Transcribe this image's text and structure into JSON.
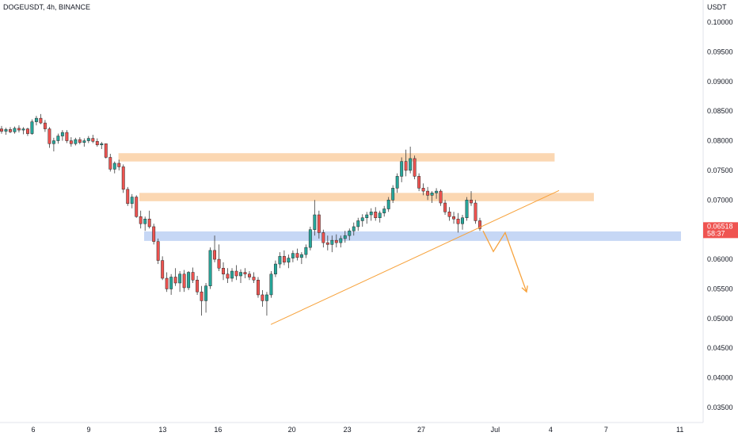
{
  "header": {
    "title": "DOGEUSDT, 4h, BINANCE"
  },
  "currency": "USDT",
  "price_tag": {
    "price": "0.06518",
    "countdown": "58:37",
    "color": "#ef5350"
  },
  "colors": {
    "up": "#26a69a",
    "down": "#ef5350",
    "zone_orange": "#fbd7b2",
    "zone_blue": "#c6d7f5",
    "trendline": "#f7a23b"
  },
  "chart_data": {
    "type": "candlestick",
    "y_axis": {
      "min": 0.032,
      "max": 0.1035,
      "ticks": [
        "0.10000",
        "0.09500",
        "0.09000",
        "0.08500",
        "0.08000",
        "0.07500",
        "0.07000",
        "0.06500",
        "0.06000",
        "0.05500",
        "0.05000",
        "0.04500",
        "0.04000",
        "0.03500"
      ]
    },
    "x_axis": {
      "ticks": [
        {
          "label": "6",
          "day": 6
        },
        {
          "label": "9",
          "day": 9
        },
        {
          "label": "13",
          "day": 13
        },
        {
          "label": "16",
          "day": 16
        },
        {
          "label": "20",
          "day": 20
        },
        {
          "label": "23",
          "day": 23
        },
        {
          "label": "27",
          "day": 27
        },
        {
          "label": "Jul",
          "day": 31
        },
        {
          "label": "4",
          "day": 34
        },
        {
          "label": "7",
          "day": 37
        },
        {
          "label": "11",
          "day": 41
        }
      ]
    },
    "candles_ohlc": [
      [
        0.082,
        0.0825,
        0.0812,
        0.0816
      ],
      [
        0.0816,
        0.0822,
        0.081,
        0.0819
      ],
      [
        0.0819,
        0.0823,
        0.0813,
        0.0815
      ],
      [
        0.0815,
        0.0824,
        0.0812,
        0.0821
      ],
      [
        0.0821,
        0.0826,
        0.0814,
        0.0818
      ],
      [
        0.0818,
        0.0823,
        0.0811,
        0.082
      ],
      [
        0.082,
        0.0822,
        0.0808,
        0.0812
      ],
      [
        0.0812,
        0.0836,
        0.081,
        0.0832
      ],
      [
        0.0832,
        0.0842,
        0.0826,
        0.0838
      ],
      [
        0.0838,
        0.0845,
        0.0828,
        0.083
      ],
      [
        0.083,
        0.0835,
        0.0815,
        0.082
      ],
      [
        0.082,
        0.0823,
        0.0788,
        0.0795
      ],
      [
        0.0795,
        0.0805,
        0.0782,
        0.08
      ],
      [
        0.08,
        0.0812,
        0.0795,
        0.0808
      ],
      [
        0.0808,
        0.0818,
        0.08,
        0.0814
      ],
      [
        0.0814,
        0.0818,
        0.0796,
        0.08
      ],
      [
        0.08,
        0.0806,
        0.079,
        0.0795
      ],
      [
        0.0795,
        0.0805,
        0.0792,
        0.0802
      ],
      [
        0.0802,
        0.0806,
        0.0794,
        0.0797
      ],
      [
        0.0797,
        0.0804,
        0.079,
        0.08
      ],
      [
        0.08,
        0.0808,
        0.0796,
        0.0804
      ],
      [
        0.0804,
        0.081,
        0.0796,
        0.0799
      ],
      [
        0.0799,
        0.0804,
        0.079,
        0.0793
      ],
      [
        0.0793,
        0.0798,
        0.0786,
        0.0795
      ],
      [
        0.0795,
        0.079,
        0.077,
        0.0772
      ],
      [
        0.0772,
        0.0778,
        0.0748,
        0.0752
      ],
      [
        0.0752,
        0.0765,
        0.0745,
        0.0762
      ],
      [
        0.0762,
        0.0768,
        0.075,
        0.0756
      ],
      [
        0.0756,
        0.076,
        0.0712,
        0.0718
      ],
      [
        0.0718,
        0.0722,
        0.069,
        0.0694
      ],
      [
        0.0694,
        0.071,
        0.0686,
        0.0705
      ],
      [
        0.0705,
        0.0708,
        0.067,
        0.0672
      ],
      [
        0.0672,
        0.0682,
        0.0652,
        0.066
      ],
      [
        0.066,
        0.0672,
        0.0648,
        0.0668
      ],
      [
        0.0668,
        0.0682,
        0.0652,
        0.0655
      ],
      [
        0.0655,
        0.066,
        0.0625,
        0.063
      ],
      [
        0.063,
        0.0635,
        0.0592,
        0.0598
      ],
      [
        0.0598,
        0.0605,
        0.0565,
        0.0568
      ],
      [
        0.0568,
        0.0578,
        0.0545,
        0.055
      ],
      [
        0.055,
        0.0575,
        0.054,
        0.057
      ],
      [
        0.057,
        0.0585,
        0.0555,
        0.056
      ],
      [
        0.056,
        0.058,
        0.0545,
        0.0575
      ],
      [
        0.0575,
        0.0582,
        0.0545,
        0.0552
      ],
      [
        0.0552,
        0.058,
        0.0548,
        0.0578
      ],
      [
        0.0578,
        0.0586,
        0.056,
        0.0565
      ],
      [
        0.0565,
        0.0572,
        0.054,
        0.0545
      ],
      [
        0.0545,
        0.0555,
        0.0505,
        0.053
      ],
      [
        0.053,
        0.056,
        0.051,
        0.0555
      ],
      [
        0.0555,
        0.062,
        0.055,
        0.0615
      ],
      [
        0.0615,
        0.064,
        0.0595,
        0.06
      ],
      [
        0.06,
        0.0625,
        0.058,
        0.0585
      ],
      [
        0.0585,
        0.0595,
        0.0565,
        0.0575
      ],
      [
        0.0575,
        0.0585,
        0.056,
        0.0568
      ],
      [
        0.0568,
        0.0585,
        0.0562,
        0.058
      ],
      [
        0.058,
        0.059,
        0.0565,
        0.0572
      ],
      [
        0.0572,
        0.0583,
        0.056,
        0.0578
      ],
      [
        0.0578,
        0.0585,
        0.0568,
        0.0575
      ],
      [
        0.0575,
        0.058,
        0.0565,
        0.057
      ],
      [
        0.057,
        0.0578,
        0.056,
        0.0565
      ],
      [
        0.0565,
        0.057,
        0.0535,
        0.054
      ],
      [
        0.054,
        0.0548,
        0.052,
        0.053
      ],
      [
        0.053,
        0.0545,
        0.0505,
        0.054
      ],
      [
        0.054,
        0.058,
        0.0535,
        0.0575
      ],
      [
        0.0575,
        0.0598,
        0.057,
        0.0592
      ],
      [
        0.0592,
        0.0612,
        0.0585,
        0.0605
      ],
      [
        0.0605,
        0.0615,
        0.059,
        0.0595
      ],
      [
        0.0595,
        0.0608,
        0.0585,
        0.0602
      ],
      [
        0.0602,
        0.0615,
        0.0595,
        0.061
      ],
      [
        0.061,
        0.0618,
        0.0598,
        0.0603
      ],
      [
        0.0603,
        0.0612,
        0.0592,
        0.0608
      ],
      [
        0.0608,
        0.0625,
        0.0602,
        0.062
      ],
      [
        0.062,
        0.0655,
        0.0615,
        0.065
      ],
      [
        0.065,
        0.07,
        0.064,
        0.0675
      ],
      [
        0.0675,
        0.0682,
        0.0635,
        0.0645
      ],
      [
        0.0645,
        0.065,
        0.062,
        0.0628
      ],
      [
        0.0628,
        0.064,
        0.0615,
        0.0625
      ],
      [
        0.0625,
        0.064,
        0.0612,
        0.0632
      ],
      [
        0.0632,
        0.0642,
        0.062,
        0.0628
      ],
      [
        0.0628,
        0.064,
        0.062,
        0.0635
      ],
      [
        0.0635,
        0.0648,
        0.0628,
        0.064
      ],
      [
        0.064,
        0.0652,
        0.0632,
        0.0648
      ],
      [
        0.0648,
        0.0662,
        0.064,
        0.0655
      ],
      [
        0.0655,
        0.067,
        0.0648,
        0.0665
      ],
      [
        0.0665,
        0.0676,
        0.0655,
        0.067
      ],
      [
        0.067,
        0.068,
        0.066,
        0.0675
      ],
      [
        0.0675,
        0.0686,
        0.0665,
        0.068
      ],
      [
        0.068,
        0.0688,
        0.0665,
        0.067
      ],
      [
        0.067,
        0.0682,
        0.0662,
        0.0678
      ],
      [
        0.0678,
        0.069,
        0.0672,
        0.0685
      ],
      [
        0.0685,
        0.0705,
        0.068,
        0.07
      ],
      [
        0.07,
        0.0725,
        0.0695,
        0.072
      ],
      [
        0.072,
        0.0745,
        0.0712,
        0.074
      ],
      [
        0.074,
        0.0772,
        0.073,
        0.0765
      ],
      [
        0.0765,
        0.0785,
        0.074,
        0.075
      ],
      [
        0.075,
        0.079,
        0.0745,
        0.077
      ],
      [
        0.077,
        0.0775,
        0.0735,
        0.074
      ],
      [
        0.074,
        0.0745,
        0.0715,
        0.072
      ],
      [
        0.072,
        0.0728,
        0.0708,
        0.0715
      ],
      [
        0.0715,
        0.0722,
        0.07,
        0.0708
      ],
      [
        0.0708,
        0.0715,
        0.0695,
        0.0712
      ],
      [
        0.0712,
        0.072,
        0.0702,
        0.0715
      ],
      [
        0.0715,
        0.0718,
        0.069,
        0.0695
      ],
      [
        0.0695,
        0.07,
        0.0675,
        0.068
      ],
      [
        0.068,
        0.0688,
        0.0665,
        0.0672
      ],
      [
        0.0672,
        0.068,
        0.066,
        0.0668
      ],
      [
        0.0668,
        0.0678,
        0.0645,
        0.066
      ],
      [
        0.066,
        0.0675,
        0.065,
        0.067
      ],
      [
        0.067,
        0.0705,
        0.0665,
        0.07
      ],
      [
        0.07,
        0.0715,
        0.069,
        0.0695
      ],
      [
        0.0695,
        0.07,
        0.066,
        0.0665
      ],
      [
        0.0665,
        0.067,
        0.0648,
        0.06518
      ]
    ],
    "zones": [
      {
        "name": "resistance-zone-upper",
        "color": "#fbd7b2",
        "y_top": 0.0779,
        "y_bottom": 0.0765,
        "x_start": 0.1605,
        "x_end": 0.7515
      },
      {
        "name": "resistance-zone-lower",
        "color": "#fbd7b2",
        "y_top": 0.0712,
        "y_bottom": 0.0698,
        "x_start": 0.1888,
        "x_end": 0.8047
      },
      {
        "name": "support-zone",
        "color": "#c6d7f5",
        "y_top": 0.0647,
        "y_bottom": 0.0631,
        "x_start": 0.1953,
        "x_end": 0.9227
      }
    ],
    "trendline": {
      "color": "#f7a23b",
      "points": [
        [
          0.367,
          0.049
        ],
        [
          0.7575,
          0.0716
        ]
      ]
    },
    "projection": {
      "color": "#f7a23b",
      "points": [
        [
          0.6545,
          0.0648
        ],
        [
          0.6685,
          0.0613
        ],
        [
          0.6845,
          0.0645
        ],
        [
          0.7135,
          0.0545
        ]
      ]
    }
  }
}
